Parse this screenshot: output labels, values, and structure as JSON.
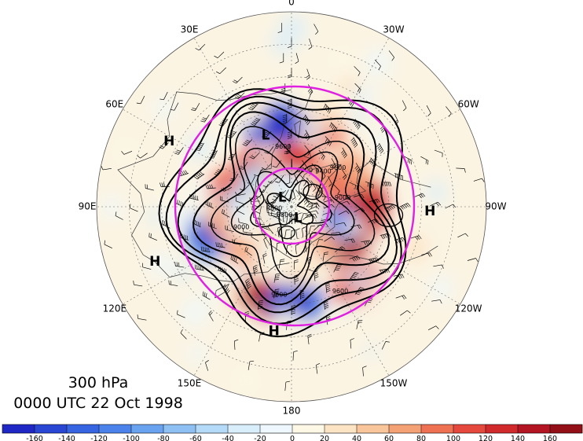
{
  "title": {
    "level": "300 hPa",
    "time": "0000 UTC 22 Oct 1998"
  },
  "longitude_labels": [
    {
      "text": "0",
      "lon": 0
    },
    {
      "text": "30W",
      "lon": -30
    },
    {
      "text": "60W",
      "lon": -60
    },
    {
      "text": "90W",
      "lon": -90
    },
    {
      "text": "120W",
      "lon": -120
    },
    {
      "text": "150W",
      "lon": -150
    },
    {
      "text": "180",
      "lon": 180
    },
    {
      "text": "150E",
      "lon": 150
    },
    {
      "text": "120E",
      "lon": 120
    },
    {
      "text": "90E",
      "lon": 90
    },
    {
      "text": "60E",
      "lon": 60
    },
    {
      "text": "30E",
      "lon": 30
    }
  ],
  "pressure_centers": [
    {
      "text": "H",
      "lon": 62,
      "lat": 26
    },
    {
      "text": "H",
      "lon": 112,
      "lat": 22
    },
    {
      "text": "H",
      "lon": 172,
      "lat": 32
    },
    {
      "text": "H",
      "lon": -92,
      "lat": 26
    },
    {
      "text": "L",
      "lon": 20,
      "lat": 55
    },
    {
      "text": "L",
      "lon": 45,
      "lat": 84
    },
    {
      "text": "L",
      "lon": -150,
      "lat": 84
    }
  ],
  "contour_labels": [
    {
      "text": "9600",
      "lon": 8,
      "lat": 62
    },
    {
      "text": "9400",
      "lon": -42,
      "lat": 68
    },
    {
      "text": "9600",
      "lon": -50,
      "lat": 62
    },
    {
      "text": "9000",
      "lon": -20,
      "lat": 72
    },
    {
      "text": "9000",
      "lon": -80,
      "lat": 66
    },
    {
      "text": "8800",
      "lon": 95,
      "lat": 82
    },
    {
      "text": "8800",
      "lon": 140,
      "lat": 85
    },
    {
      "text": "9000",
      "lon": 112,
      "lat": 65
    },
    {
      "text": "9600",
      "lon": 172,
      "lat": 49
    },
    {
      "text": "9600",
      "lon": -150,
      "lat": 45
    }
  ],
  "colorbar": {
    "ticks": [
      "-160",
      "-140",
      "-120",
      "-100",
      "-80",
      "-60",
      "-40",
      "-20",
      "0",
      "20",
      "40",
      "60",
      "80",
      "100",
      "120",
      "140",
      "160"
    ],
    "colors": [
      "#1f28c4",
      "#2a47d4",
      "#3765e2",
      "#4c83ea",
      "#69a2ef",
      "#8ec0f3",
      "#b4daf7",
      "#d9eefb",
      "#eef7fd",
      "#fdf8e6",
      "#fce3c4",
      "#f9c69c",
      "#f4a176",
      "#ee7154",
      "#e5483c",
      "#d02a2c",
      "#b31523",
      "#931019"
    ]
  },
  "anomaly_features": [
    {
      "lon": 12,
      "lat": 52,
      "value": -150
    },
    {
      "lon": -22,
      "lat": 52,
      "value": 90
    },
    {
      "lon": -2,
      "lat": 68,
      "value": 110
    },
    {
      "lon": 45,
      "lat": 64,
      "value": 110
    },
    {
      "lon": 58,
      "lat": 68,
      "value": -55
    },
    {
      "lon": 78,
      "lat": 58,
      "value": 95
    },
    {
      "lon": 92,
      "lat": 62,
      "value": -55
    },
    {
      "lon": 108,
      "lat": 48,
      "value": -120
    },
    {
      "lon": 100,
      "lat": 56,
      "value": 60
    },
    {
      "lon": 135,
      "lat": 58,
      "value": 70
    },
    {
      "lon": 162,
      "lat": 45,
      "value": 130
    },
    {
      "lon": -178,
      "lat": 46,
      "value": -140
    },
    {
      "lon": -172,
      "lat": 58,
      "value": 35
    },
    {
      "lon": -140,
      "lat": 44,
      "value": 110
    },
    {
      "lon": -120,
      "lat": 60,
      "value": 140
    },
    {
      "lon": -100,
      "lat": 66,
      "value": -110
    },
    {
      "lon": -90,
      "lat": 54,
      "value": 120
    },
    {
      "lon": -60,
      "lat": 56,
      "value": 75
    },
    {
      "lon": -65,
      "lat": 68,
      "value": 90
    },
    {
      "lon": -145,
      "lat": 68,
      "value": 60
    },
    {
      "lon": 20,
      "lat": 78,
      "value": -40
    }
  ]
}
